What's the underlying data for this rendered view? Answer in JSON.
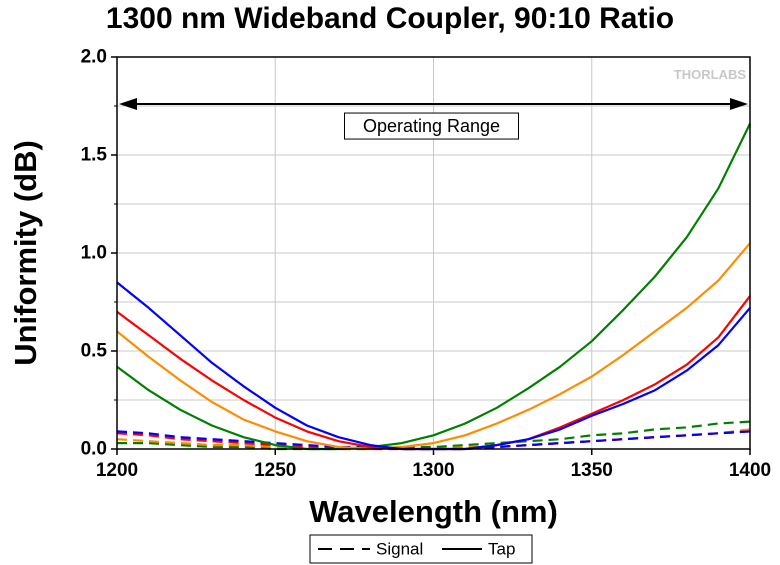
{
  "chart_data": {
    "type": "line",
    "title": "1300 nm Wideband Coupler, 90:10 Ratio",
    "xlabel": "Wavelength (nm)",
    "ylabel": "Uniformity (dB)",
    "xlim": [
      1200,
      1400
    ],
    "ylim": [
      0.0,
      2.0
    ],
    "xticks": [
      "1200",
      "1250",
      "1300",
      "1350",
      "1400"
    ],
    "yticks": [
      "0.0",
      "0.5",
      "1.0",
      "1.5",
      "2.0"
    ],
    "grid": true,
    "watermark": "THORLABS",
    "annotation": {
      "text": "Operating Range",
      "from": 1200,
      "to": 1400,
      "y": 1.76
    },
    "legend": {
      "placement": "bottom",
      "entries": [
        {
          "label": "Signal",
          "style": "dashed"
        },
        {
          "label": "Tap",
          "style": "solid"
        }
      ]
    },
    "x": [
      1200,
      1210,
      1220,
      1230,
      1240,
      1250,
      1260,
      1270,
      1280,
      1290,
      1300,
      1310,
      1320,
      1330,
      1340,
      1350,
      1360,
      1370,
      1380,
      1390,
      1400
    ],
    "series": [
      {
        "color": "#0000ff",
        "style": "solid",
        "values": [
          0.85,
          0.72,
          0.58,
          0.44,
          0.32,
          0.21,
          0.12,
          0.06,
          0.02,
          0.0,
          0.0,
          0.0,
          0.02,
          0.05,
          0.1,
          0.17,
          0.23,
          0.3,
          0.4,
          0.53,
          0.72
        ]
      },
      {
        "color": "#ff0000",
        "style": "solid",
        "values": [
          0.7,
          0.58,
          0.46,
          0.35,
          0.25,
          0.16,
          0.09,
          0.04,
          0.01,
          0.0,
          0.0,
          0.0,
          0.02,
          0.05,
          0.11,
          0.18,
          0.25,
          0.33,
          0.43,
          0.57,
          0.78
        ]
      },
      {
        "color": "#ff8c00",
        "style": "solid",
        "values": [
          0.6,
          0.47,
          0.35,
          0.24,
          0.15,
          0.09,
          0.04,
          0.01,
          0.0,
          0.01,
          0.03,
          0.07,
          0.13,
          0.2,
          0.28,
          0.37,
          0.48,
          0.6,
          0.72,
          0.86,
          1.05
        ]
      },
      {
        "color": "#008000",
        "style": "solid",
        "values": [
          0.42,
          0.3,
          0.2,
          0.12,
          0.06,
          0.02,
          0.0,
          0.0,
          0.01,
          0.03,
          0.07,
          0.13,
          0.21,
          0.31,
          0.42,
          0.55,
          0.71,
          0.88,
          1.08,
          1.33,
          1.66
        ]
      },
      {
        "color": "#0000ff",
        "style": "dashed",
        "values": [
          0.09,
          0.08,
          0.06,
          0.05,
          0.04,
          0.03,
          0.02,
          0.01,
          0.01,
          0.0,
          0.0,
          0.0,
          0.01,
          0.02,
          0.03,
          0.04,
          0.05,
          0.06,
          0.07,
          0.08,
          0.09
        ]
      },
      {
        "color": "#ff0000",
        "style": "dashed",
        "values": [
          0.08,
          0.07,
          0.05,
          0.04,
          0.03,
          0.02,
          0.01,
          0.01,
          0.0,
          0.0,
          0.0,
          0.0,
          0.01,
          0.02,
          0.03,
          0.04,
          0.05,
          0.06,
          0.07,
          0.08,
          0.09
        ]
      },
      {
        "color": "#ff8c00",
        "style": "dashed",
        "values": [
          0.05,
          0.04,
          0.03,
          0.02,
          0.02,
          0.01,
          0.01,
          0.0,
          0.0,
          0.0,
          0.0,
          0.01,
          0.01,
          0.02,
          0.03,
          0.04,
          0.05,
          0.06,
          0.07,
          0.08,
          0.1
        ]
      },
      {
        "color": "#008000",
        "style": "dashed",
        "values": [
          0.03,
          0.03,
          0.02,
          0.01,
          0.01,
          0.0,
          0.0,
          0.0,
          0.0,
          0.01,
          0.01,
          0.02,
          0.03,
          0.04,
          0.05,
          0.07,
          0.08,
          0.1,
          0.11,
          0.13,
          0.14
        ]
      }
    ]
  }
}
